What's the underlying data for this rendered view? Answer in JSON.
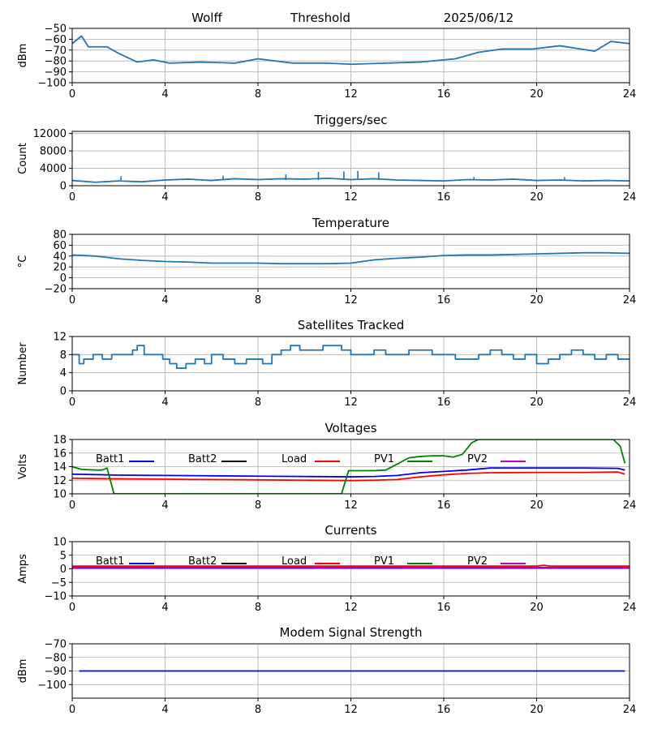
{
  "header": {
    "station": "Wolff",
    "mode": "Threshold",
    "date": "2025/06/12"
  },
  "colors": {
    "default_series": "#1f77b4",
    "grid": "#b0b0b0",
    "Batt1": "#0000ff",
    "Batt2": "#000000",
    "Load": "#ff0000",
    "PV1": "#008000",
    "PV2": "#bf00bf"
  },
  "chart_data": [
    {
      "type": "line",
      "title": "",
      "ylabel": "dBm",
      "xlim": [
        0,
        24
      ],
      "xticks": [
        0,
        4,
        8,
        12,
        16,
        20,
        24
      ],
      "ylim": [
        -100,
        -50
      ],
      "yticks": [
        -100,
        -90,
        -80,
        -70,
        -60,
        -50
      ],
      "grid": true,
      "series": [
        {
          "x": [
            0,
            0.4,
            0.7,
            1.5,
            2.0,
            2.8,
            3.5,
            4.2,
            5.5,
            7.0,
            8.0,
            9.5,
            11.0,
            12.0,
            13.5,
            15.0,
            16.5,
            17.5,
            18.5,
            19.8,
            21.0,
            22.5,
            23.2,
            24.0
          ],
          "y": [
            -64,
            -57,
            -67,
            -67,
            -73,
            -81,
            -79,
            -82,
            -81,
            -82,
            -78,
            -82,
            -82,
            -83,
            -82,
            -81,
            -78,
            -72,
            -69,
            -69,
            -66,
            -71,
            -62,
            -64
          ]
        }
      ]
    },
    {
      "type": "line",
      "title": "Triggers/sec",
      "ylabel": "Count",
      "xlim": [
        0,
        24
      ],
      "xticks": [
        0,
        4,
        8,
        12,
        16,
        20,
        24
      ],
      "ylim": [
        0,
        12500
      ],
      "yticks": [
        0,
        4000,
        8000,
        12000
      ],
      "grid": true,
      "series": [
        {
          "x": [
            0,
            1,
            2,
            3,
            4,
            5,
            6,
            7,
            8,
            9,
            10,
            11,
            12,
            13,
            14,
            15,
            16,
            17,
            18,
            19,
            20,
            21,
            22,
            23,
            24
          ],
          "y": [
            1200,
            800,
            1100,
            900,
            1300,
            1500,
            1200,
            1600,
            1400,
            1600,
            1500,
            1700,
            1400,
            1600,
            1300,
            1200,
            1100,
            1400,
            1300,
            1500,
            1200,
            1300,
            1100,
            1200,
            1100
          ]
        }
      ],
      "spikes": [
        {
          "x": 2.1,
          "y": 2200
        },
        {
          "x": 6.5,
          "y": 2300
        },
        {
          "x": 9.2,
          "y": 2600
        },
        {
          "x": 10.6,
          "y": 3200
        },
        {
          "x": 11.7,
          "y": 3300
        },
        {
          "x": 12.3,
          "y": 3400
        },
        {
          "x": 13.2,
          "y": 3100
        },
        {
          "x": 17.3,
          "y": 2000
        },
        {
          "x": 21.2,
          "y": 2000
        }
      ]
    },
    {
      "type": "line",
      "title": "Temperature",
      "ylabel": "°C",
      "xlim": [
        0,
        24
      ],
      "xticks": [
        0,
        4,
        8,
        12,
        16,
        20,
        24
      ],
      "ylim": [
        -20,
        80
      ],
      "yticks": [
        -20,
        0,
        20,
        40,
        60,
        80
      ],
      "grid": true,
      "series": [
        {
          "x": [
            0,
            1,
            2,
            3,
            4,
            5,
            6,
            7,
            8,
            9,
            10,
            11,
            12,
            13,
            14,
            15,
            16,
            17,
            18,
            19,
            20,
            21,
            22,
            23,
            24
          ],
          "y": [
            42,
            40,
            35,
            32,
            30,
            29,
            27,
            27,
            27,
            26,
            26,
            26,
            27,
            33,
            36,
            38,
            41,
            42,
            42,
            43,
            44,
            45,
            46,
            46,
            45
          ]
        }
      ]
    },
    {
      "type": "line",
      "title": "Satellites Tracked",
      "ylabel": "Number",
      "xlim": [
        0,
        24
      ],
      "xticks": [
        0,
        4,
        8,
        12,
        16,
        20,
        24
      ],
      "ylim": [
        0,
        12
      ],
      "yticks": [
        0,
        4,
        8,
        12
      ],
      "grid": true,
      "step": true,
      "series": [
        {
          "x": [
            0,
            0.3,
            0.5,
            0.9,
            1.3,
            1.7,
            2.2,
            2.6,
            2.8,
            3.1,
            3.5,
            3.9,
            4.2,
            4.5,
            4.9,
            5.3,
            5.7,
            6.0,
            6.5,
            7.0,
            7.5,
            7.9,
            8.2,
            8.6,
            9.0,
            9.4,
            9.8,
            10.3,
            10.8,
            11.2,
            11.6,
            12.0,
            12.5,
            13.0,
            13.5,
            14.0,
            14.5,
            15.0,
            15.5,
            16.0,
            16.5,
            17.0,
            17.5,
            18.0,
            18.5,
            19.0,
            19.5,
            20.0,
            20.5,
            21.0,
            21.5,
            22.0,
            22.5,
            23.0,
            23.5,
            24.0
          ],
          "y": [
            8,
            6,
            7,
            8,
            7,
            8,
            8,
            9,
            10,
            8,
            8,
            7,
            6,
            5,
            6,
            7,
            6,
            8,
            7,
            6,
            7,
            7,
            6,
            8,
            9,
            10,
            9,
            9,
            10,
            10,
            9,
            8,
            8,
            9,
            8,
            8,
            9,
            9,
            8,
            8,
            7,
            7,
            8,
            9,
            8,
            7,
            8,
            6,
            7,
            8,
            9,
            8,
            7,
            8,
            7,
            7
          ]
        }
      ]
    },
    {
      "type": "line",
      "title": "Voltages",
      "ylabel": "Volts",
      "xlim": [
        0,
        24
      ],
      "xticks": [
        0,
        4,
        8,
        12,
        16,
        20,
        24
      ],
      "ylim": [
        10,
        18
      ],
      "yticks": [
        10,
        12,
        14,
        16,
        18
      ],
      "grid": true,
      "legend": [
        "Batt1",
        "Batt2",
        "Load",
        "PV1",
        "PV2"
      ],
      "series": [
        {
          "name": "Batt1",
          "x": [
            0,
            2,
            4,
            6,
            8,
            10,
            12,
            13,
            14,
            15,
            16,
            17,
            18,
            20,
            22,
            23.5,
            23.8
          ],
          "y": [
            12.9,
            12.75,
            12.7,
            12.65,
            12.6,
            12.55,
            12.5,
            12.55,
            12.7,
            13.1,
            13.3,
            13.5,
            13.8,
            13.8,
            13.8,
            13.75,
            13.5
          ]
        },
        {
          "name": "Load",
          "x": [
            0,
            2,
            4,
            6,
            8,
            10,
            12,
            13,
            14,
            15,
            16,
            17,
            18,
            20,
            22,
            23.5,
            23.8
          ],
          "y": [
            12.3,
            12.2,
            12.15,
            12.1,
            12.05,
            12.0,
            11.95,
            12.0,
            12.1,
            12.5,
            12.8,
            13.0,
            13.1,
            13.15,
            13.15,
            13.2,
            12.9
          ]
        },
        {
          "name": "PV1",
          "x": [
            0,
            0.4,
            1.0,
            1.3,
            1.5,
            1.8,
            11.6,
            11.9,
            12.5,
            13.0,
            13.5,
            13.9,
            14.5,
            15.0,
            15.5,
            16.0,
            16.4,
            16.8,
            17.2,
            17.5,
            23.3,
            23.6,
            23.8
          ],
          "y": [
            14.0,
            13.6,
            13.5,
            13.5,
            13.8,
            10.0,
            10.0,
            13.4,
            13.4,
            13.4,
            13.5,
            14.2,
            15.3,
            15.5,
            15.6,
            15.6,
            15.4,
            15.8,
            17.5,
            18.0,
            18.0,
            17.0,
            14.5
          ]
        }
      ]
    },
    {
      "type": "line",
      "title": "Currents",
      "ylabel": "Amps",
      "xlim": [
        0,
        24
      ],
      "xticks": [
        0,
        4,
        8,
        12,
        16,
        20,
        24
      ],
      "ylim": [
        -10,
        10
      ],
      "yticks": [
        -10,
        -5,
        0,
        5,
        10
      ],
      "grid": true,
      "legend": [
        "Batt1",
        "Batt2",
        "Load",
        "PV1",
        "PV2"
      ],
      "series": [
        {
          "name": "Load",
          "x": [
            0,
            6,
            12,
            18,
            20,
            20.3,
            20.6,
            24
          ],
          "y": [
            1.0,
            1.0,
            1.0,
            1.0,
            1.0,
            1.3,
            1.0,
            1.0
          ]
        },
        {
          "name": "Batt1",
          "x": [
            0,
            24
          ],
          "y": [
            0.3,
            0.3
          ]
        },
        {
          "name": "PV2",
          "x": [
            0,
            24
          ],
          "y": [
            0.5,
            0.5
          ]
        }
      ]
    },
    {
      "type": "line",
      "title": "Modem Signal Strength",
      "ylabel": "dBm",
      "xlim": [
        0,
        24
      ],
      "xticks": [
        0,
        4,
        8,
        12,
        16,
        20,
        24
      ],
      "ylim": [
        -110,
        -70
      ],
      "yticks": [
        -100,
        -90,
        -80,
        -70
      ],
      "grid": true,
      "series": [
        {
          "name": "Batt1",
          "x": [
            0.3,
            23.8
          ],
          "y": [
            -90,
            -90
          ]
        }
      ]
    }
  ]
}
